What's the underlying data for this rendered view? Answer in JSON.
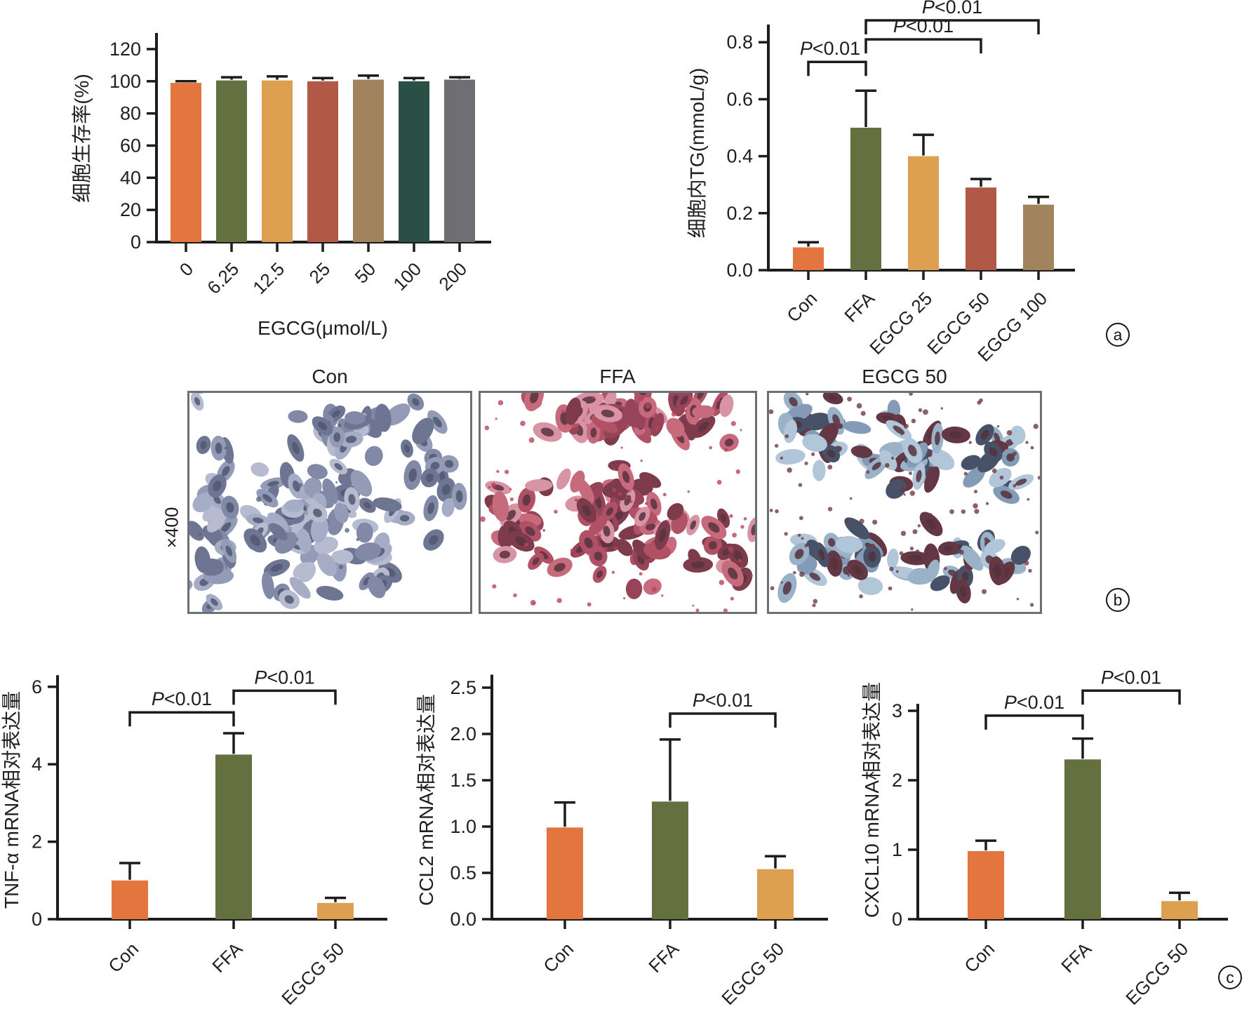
{
  "figure": {
    "background": "#ffffff",
    "text_color": "#1f1f1f",
    "axis_color": "#1c1c1c"
  },
  "panel_letters": {
    "a": "a",
    "b": "b",
    "c": "c"
  },
  "micrographs": {
    "magnification": "×400",
    "border_color": "#6b7072",
    "panels": [
      {
        "label": "Con",
        "cell_palette": [
          "#9ba3bf",
          "#8790ae",
          "#737c9d",
          "#5d6687",
          "#aeb4cb"
        ],
        "nucleus_color": "#3d4560",
        "speck_color": "#4a5272"
      },
      {
        "label": "FFA",
        "cell_palette": [
          "#c05a6e",
          "#a83e55",
          "#8d2f46",
          "#6f2538",
          "#d4879a"
        ],
        "nucleus_color": "#471c2b",
        "speck_color": "#b03048"
      },
      {
        "label": "EGCG 50",
        "cell_palette": [
          "#a9c0d4",
          "#90aac3",
          "#7691b0",
          "#532230",
          "#343f58"
        ],
        "nucleus_color": "#431b28",
        "speck_color": "#5c2433"
      }
    ]
  },
  "chart_data": [
    {
      "id": "viability",
      "type": "bar",
      "ylabel": "细胞生存率(%)",
      "xlabel": "EGCG(μmol/L)",
      "categories": [
        "0",
        "6.25",
        "12.5",
        "25",
        "50",
        "100",
        "200"
      ],
      "values": [
        99,
        100.5,
        100.5,
        100,
        101,
        100,
        101
      ],
      "errors": [
        1,
        2,
        2.5,
        2,
        2.5,
        2,
        1.5
      ],
      "bar_colors": [
        "#E2763E",
        "#64703F",
        "#DDA050",
        "#B25847",
        "#A1845E",
        "#2A4F44",
        "#6E6E73"
      ],
      "ytick_values": [
        0,
        20,
        40,
        60,
        80,
        100,
        120
      ],
      "ytick_labels": [
        "0",
        "20",
        "40",
        "60",
        "80",
        "100",
        "120"
      ],
      "ylim": [
        0,
        130
      ],
      "brackets": []
    },
    {
      "id": "tg",
      "type": "bar",
      "ylabel": "细胞内TG(mmoL/g)",
      "categories": [
        "Con",
        "FFA",
        "EGCG 25",
        "EGCG 50",
        "EGCG 100"
      ],
      "values": [
        0.08,
        0.5,
        0.4,
        0.29,
        0.23
      ],
      "errors": [
        0.018,
        0.13,
        0.075,
        0.03,
        0.027
      ],
      "bar_colors": [
        "#E2763E",
        "#64703F",
        "#DDA050",
        "#B25847",
        "#A1845E"
      ],
      "ytick_values": [
        0,
        0.2,
        0.4,
        0.6,
        0.8
      ],
      "ytick_labels": [
        "0.0",
        "0.2",
        "0.4",
        "0.6",
        "0.8"
      ],
      "ylim": [
        0,
        0.862
      ],
      "panel_letter": "a",
      "brackets": [
        {
          "from": 0,
          "to": 1,
          "y": 0.731,
          "label": "P<0.01",
          "dx": -10
        },
        {
          "from": 1,
          "to": 3,
          "y": 0.81,
          "label": "P<0.01"
        },
        {
          "from": 1,
          "to": 4,
          "y": 0.877,
          "label": "P<0.01"
        }
      ]
    },
    {
      "id": "tnf",
      "type": "bar",
      "ylabel": "TNF-α mRNA相对表达量",
      "categories": [
        "Con",
        "FFA",
        "EGCG 50"
      ],
      "values": [
        1.0,
        4.25,
        0.42
      ],
      "errors": [
        0.45,
        0.55,
        0.13
      ],
      "bar_colors": [
        "#E2763E",
        "#64703F",
        "#DDA050"
      ],
      "ytick_values": [
        0,
        2,
        4,
        6
      ],
      "ytick_labels": [
        "0",
        "2",
        "4",
        "6"
      ],
      "ylim": [
        0,
        6.3
      ],
      "brackets": [
        {
          "from": 0,
          "to": 1,
          "y": 5.34,
          "label": "P<0.01"
        },
        {
          "from": 1,
          "to": 2,
          "y": 5.9,
          "label": "P<0.01"
        }
      ]
    },
    {
      "id": "ccl2",
      "type": "bar",
      "ylabel": "CCL2 mRNA相对表达量",
      "categories": [
        "Con",
        "FFA",
        "EGCG 50"
      ],
      "values": [
        0.99,
        1.27,
        0.54
      ],
      "errors": [
        0.27,
        0.67,
        0.14
      ],
      "bar_colors": [
        "#E2763E",
        "#64703F",
        "#DDA050"
      ],
      "ytick_values": [
        0,
        0.5,
        1.0,
        1.5,
        2.0,
        2.5
      ],
      "ytick_labels": [
        "0.0",
        "0.5",
        "1.0",
        "1.5",
        "2.0",
        "2.5"
      ],
      "ylim": [
        0,
        2.64
      ],
      "brackets": [
        {
          "from": 1,
          "to": 2,
          "y": 2.22,
          "label": "P<0.01"
        }
      ]
    },
    {
      "id": "cxcl10",
      "type": "bar",
      "ylabel": "CXCL10 mRNA相对表达量",
      "categories": [
        "Con",
        "FFA",
        "EGCG 50"
      ],
      "values": [
        0.98,
        2.3,
        0.26
      ],
      "errors": [
        0.15,
        0.3,
        0.12
      ],
      "bar_colors": [
        "#E2763E",
        "#64703F",
        "#DDA050"
      ],
      "ytick_values": [
        0,
        1,
        2,
        3
      ],
      "ytick_labels": [
        "0",
        "1",
        "2",
        "3"
      ],
      "ylim": [
        0,
        3.1
      ],
      "panel_letter": "c",
      "brackets": [
        {
          "from": 0,
          "to": 1,
          "y": 2.93,
          "label": "P<0.01"
        },
        {
          "from": 1,
          "to": 2,
          "y": 3.29,
          "label": "P<0.01"
        }
      ]
    }
  ]
}
